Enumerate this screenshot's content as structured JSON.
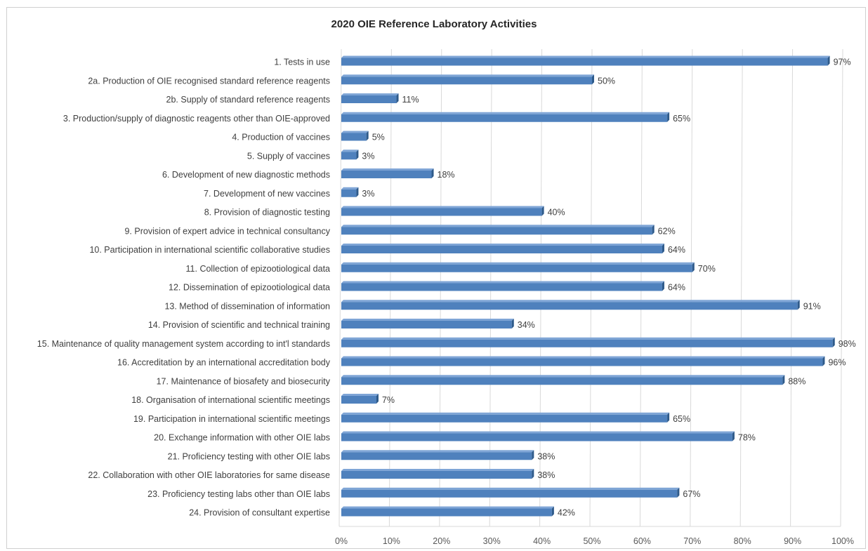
{
  "chart_data": {
    "type": "bar",
    "orientation": "horizontal",
    "title": "2020 OIE Reference Laboratory Activities",
    "xlabel": "",
    "ylabel": "",
    "xlim": [
      0,
      100
    ],
    "x_ticks": [
      "0%",
      "10%",
      "20%",
      "30%",
      "40%",
      "50%",
      "60%",
      "70%",
      "80%",
      "90%",
      "100%"
    ],
    "grid": "vertical",
    "legend": "none",
    "colors": {
      "bar": "#4f81bd",
      "bar_side": "#2e5a8a",
      "bar_top": "#7fa5d6",
      "grid": "#d9d9d9"
    },
    "categories": [
      "1. Tests in use",
      "2a. Production of OIE recognised standard reference reagents",
      "2b. Supply of standard reference reagents",
      "3. Production/supply of diagnostic reagents other than OIE-approved",
      "4. Production of vaccines",
      "5. Supply of vaccines",
      "6. Development of new diagnostic methods",
      "7. Development of new vaccines",
      "8. Provision of diagnostic testing",
      "9. Provision of expert advice in technical consultancy",
      "10. Participation in international scientific collaborative studies",
      "11. Collection of epizootiological data",
      "12. Dissemination of epizootiological data",
      "13. Method of dissemination of information",
      "14. Provision of scientific and technical training",
      "15. Maintenance of quality management system according to int'l standards",
      "16. Accreditation by an international accreditation body",
      "17. Maintenance of biosafety and biosecurity",
      "18. Organisation of international scientific meetings",
      "19. Participation in international scientific meetings",
      "20. Exchange information with other OIE labs",
      "21. Proficiency testing with other OIE labs",
      "22. Collaboration with other OIE laboratories for same disease",
      "23. Proficiency testing labs other than OIE labs",
      "24. Provision of consultant expertise"
    ],
    "values": [
      97,
      50,
      11,
      65,
      5,
      3,
      18,
      3,
      40,
      62,
      64,
      70,
      64,
      91,
      34,
      98,
      96,
      88,
      7,
      65,
      78,
      38,
      38,
      67,
      42
    ],
    "data_labels": [
      "97%",
      "50%",
      "11%",
      "65%",
      "5%",
      "3%",
      "18%",
      "3%",
      "40%",
      "62%",
      "64%",
      "70%",
      "64%",
      "91%",
      "34%",
      "98%",
      "96%",
      "88%",
      "7%",
      "65%",
      "78%",
      "38%",
      "38%",
      "67%",
      "42%"
    ]
  }
}
